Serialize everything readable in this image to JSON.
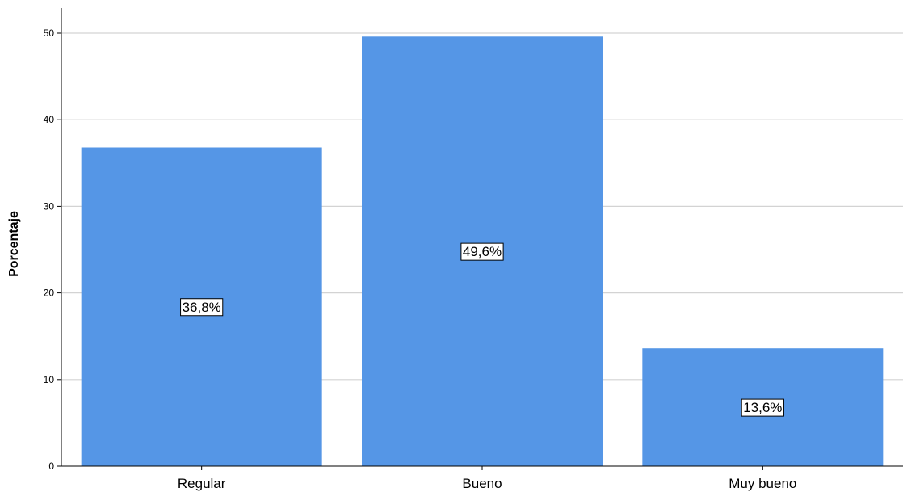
{
  "chart_data": {
    "type": "bar",
    "title": "",
    "xlabel": "",
    "ylabel": "Porcentaje",
    "categories": [
      "Regular",
      "Bueno",
      "Muy bueno"
    ],
    "values": [
      36.8,
      49.6,
      13.6
    ],
    "data_labels": [
      "36,8%",
      "49,6%",
      "13,6%"
    ],
    "ylim": [
      0,
      52
    ],
    "yticks": [
      0,
      10,
      20,
      30,
      40,
      50
    ],
    "grid": "horizontal",
    "legend": "none",
    "colors": {
      "bar": "#5596E6",
      "grid": "#D3D3D3",
      "axis": "#000000",
      "label_box": "#FFFFFF"
    }
  }
}
